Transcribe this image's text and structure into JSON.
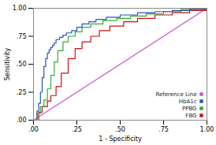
{
  "chart_data": {
    "type": "line",
    "title": "",
    "xlabel": "1 - Specificity",
    "ylabel": "Sensitivity",
    "xlim": [
      0.0,
      1.0
    ],
    "ylim": [
      0.0,
      1.0
    ],
    "xticks": [
      {
        "value": 0.0,
        "label": ".00"
      },
      {
        "value": 0.25,
        "label": ".25"
      },
      {
        "value": 0.5,
        "label": ".50"
      },
      {
        "value": 0.75,
        "label": ".75"
      },
      {
        "value": 1.0,
        "label": "1.00"
      }
    ],
    "yticks": [
      {
        "value": 0.0,
        "label": ".00"
      },
      {
        "value": 0.25,
        "label": ".25"
      },
      {
        "value": 0.5,
        "label": ".50"
      },
      {
        "value": 0.75,
        "label": ".75"
      },
      {
        "value": 1.0,
        "label": "1.00"
      }
    ],
    "grid": false,
    "legend": "lower right",
    "series": [
      {
        "name": "Reference Line",
        "color": "#cc55cc",
        "type": "line",
        "x": [
          0,
          1
        ],
        "values": [
          0,
          1
        ]
      },
      {
        "name": "HbA1c",
        "color": "#2255bb",
        "type": "step",
        "x": [
          0.0,
          0.02,
          0.03,
          0.04,
          0.05,
          0.06,
          0.07,
          0.08,
          0.09,
          0.1,
          0.11,
          0.12,
          0.13,
          0.15,
          0.17,
          0.19,
          0.22,
          0.25,
          0.28,
          0.32,
          0.36,
          0.42,
          0.5,
          0.6,
          0.7,
          0.8,
          0.9,
          1.0
        ],
        "values": [
          0.0,
          0.08,
          0.15,
          0.25,
          0.38,
          0.48,
          0.55,
          0.6,
          0.63,
          0.65,
          0.67,
          0.69,
          0.72,
          0.74,
          0.76,
          0.78,
          0.8,
          0.83,
          0.86,
          0.88,
          0.9,
          0.92,
          0.94,
          0.96,
          0.97,
          0.98,
          0.99,
          1.0
        ]
      },
      {
        "name": "PPBG",
        "color": "#33aa33",
        "type": "step",
        "x": [
          0.0,
          0.02,
          0.04,
          0.06,
          0.08,
          0.1,
          0.12,
          0.14,
          0.17,
          0.2,
          0.24,
          0.28,
          0.33,
          0.4,
          0.48,
          0.56,
          0.65,
          0.75,
          0.85,
          1.0
        ],
        "values": [
          0.0,
          0.06,
          0.12,
          0.18,
          0.28,
          0.4,
          0.52,
          0.62,
          0.7,
          0.75,
          0.79,
          0.83,
          0.86,
          0.89,
          0.91,
          0.93,
          0.95,
          0.97,
          0.99,
          1.0
        ]
      },
      {
        "name": "FBG",
        "color": "#cc1111",
        "type": "step",
        "x": [
          0.0,
          0.03,
          0.05,
          0.08,
          0.1,
          0.13,
          0.16,
          0.2,
          0.24,
          0.28,
          0.33,
          0.38,
          0.44,
          0.52,
          0.6,
          0.7,
          0.8,
          0.9,
          1.0
        ],
        "values": [
          0.0,
          0.07,
          0.12,
          0.17,
          0.22,
          0.3,
          0.42,
          0.55,
          0.64,
          0.7,
          0.75,
          0.8,
          0.84,
          0.88,
          0.91,
          0.94,
          0.96,
          0.98,
          1.0
        ]
      }
    ]
  }
}
